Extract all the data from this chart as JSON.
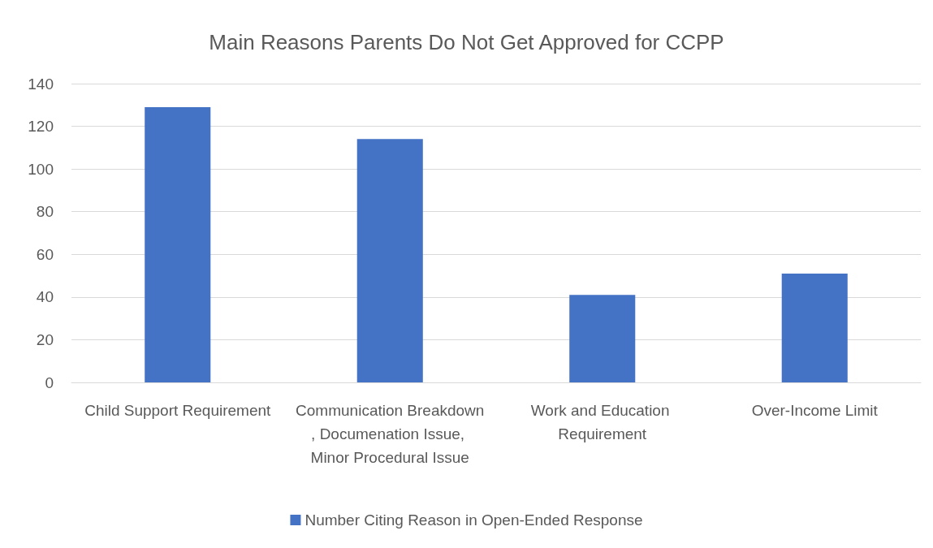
{
  "chart_data": {
    "type": "bar",
    "title": "Main Reasons Parents Do Not Get Approved for CCPP",
    "categories": [
      "Child Support Requirement",
      "Communication Breakdown, Documenation Issue, Minor Procedural Issue",
      "Work and Education Requirement",
      "Over-Income Limit"
    ],
    "series": [
      {
        "name": "Number Citing Reason in Open-Ended Response",
        "color": "#4472c4",
        "values": [
          129,
          114,
          41,
          51
        ]
      }
    ],
    "ylim": [
      0,
      140
    ],
    "yticks": [
      0,
      20,
      40,
      60,
      80,
      100,
      120,
      140
    ],
    "grid": "y",
    "legend": "bottom"
  }
}
